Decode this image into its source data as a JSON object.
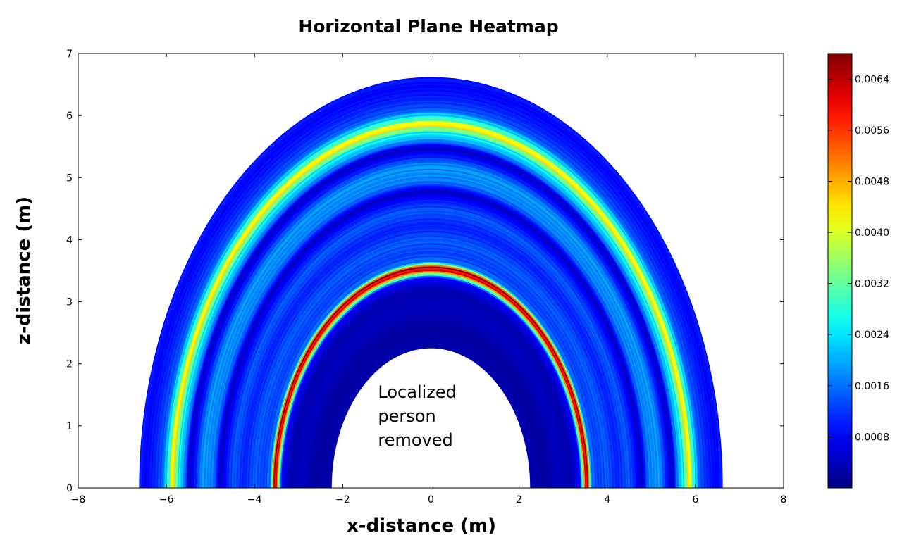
{
  "chart_data": {
    "type": "heatmap",
    "title": "Horizontal Plane Heatmap",
    "xlabel": "x-distance (m)",
    "ylabel": "z-distance (m)",
    "xlim": [
      -8,
      8
    ],
    "ylim": [
      0,
      7
    ],
    "xticks": [
      -8,
      -6,
      -4,
      -2,
      0,
      2,
      4,
      6,
      8
    ],
    "xtick_labels": [
      "−8",
      "−6",
      "−4",
      "−2",
      "0",
      "2",
      "4",
      "6",
      "8"
    ],
    "yticks": [
      0,
      1,
      2,
      3,
      4,
      5,
      6,
      7
    ],
    "ytick_labels": [
      "0",
      "1",
      "2",
      "3",
      "4",
      "5",
      "6",
      "7"
    ],
    "grid": false,
    "colormap": "jet",
    "colorbar": {
      "range": [
        0,
        0.0068
      ],
      "ticks": [
        0.0008,
        0.0016,
        0.0024,
        0.0032,
        0.004,
        0.0048,
        0.0056,
        0.0064
      ],
      "tick_labels": [
        "0.0008",
        "0.0016",
        "0.0024",
        "0.0032",
        "0.0040",
        "0.0048",
        "0.0056",
        "0.0064"
      ]
    },
    "region": {
      "shape": "semi-annulus",
      "center": [
        0,
        0
      ],
      "inner_radius": 2.25,
      "outer_radius": 6.62
    },
    "radial_profile": [
      {
        "r": 2.25,
        "v": 0.0003
      },
      {
        "r": 2.6,
        "v": 0.0002
      },
      {
        "r": 2.9,
        "v": 0.0004
      },
      {
        "r": 3.2,
        "v": 0.0003
      },
      {
        "r": 3.4,
        "v": 0.0008
      },
      {
        "r": 3.5,
        "v": 0.0048
      },
      {
        "r": 3.55,
        "v": 0.0068
      },
      {
        "r": 3.6,
        "v": 0.0048
      },
      {
        "r": 3.65,
        "v": 0.0016
      },
      {
        "r": 3.8,
        "v": 0.0012
      },
      {
        "r": 4.0,
        "v": 0.0014
      },
      {
        "r": 4.25,
        "v": 0.001
      },
      {
        "r": 4.5,
        "v": 0.0014
      },
      {
        "r": 4.7,
        "v": 0.0008
      },
      {
        "r": 4.8,
        "v": 0.0004
      },
      {
        "r": 4.95,
        "v": 0.0016
      },
      {
        "r": 5.2,
        "v": 0.0018
      },
      {
        "r": 5.4,
        "v": 0.0008
      },
      {
        "r": 5.5,
        "v": 0.0004
      },
      {
        "r": 5.6,
        "v": 0.0016
      },
      {
        "r": 5.75,
        "v": 0.0026
      },
      {
        "r": 5.88,
        "v": 0.0044
      },
      {
        "r": 5.95,
        "v": 0.003
      },
      {
        "r": 6.1,
        "v": 0.0014
      },
      {
        "r": 6.3,
        "v": 0.001
      },
      {
        "r": 6.5,
        "v": 0.0008
      },
      {
        "r": 6.62,
        "v": 0.001
      }
    ],
    "annotation": {
      "text_lines": [
        "Localized",
        "person",
        "removed"
      ],
      "x": -1.2,
      "y": 1.45
    }
  },
  "colors": {
    "background": "#ffffff",
    "axes": "#000000"
  }
}
